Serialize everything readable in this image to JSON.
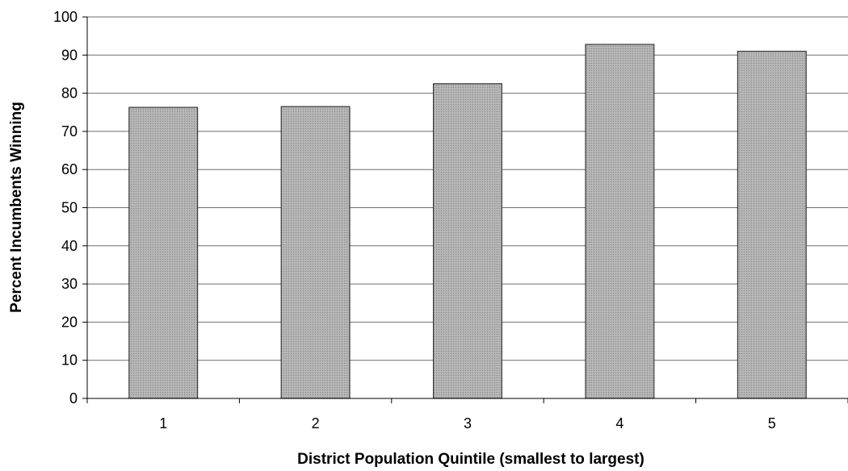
{
  "chart_data": {
    "type": "bar",
    "title": "",
    "xlabel": "District Population Quintile (smallest to largest)",
    "ylabel": "Percent Incumbents Winning",
    "categories": [
      "1",
      "2",
      "3",
      "4",
      "5"
    ],
    "values": [
      76.3,
      76.5,
      82.5,
      92.8,
      91.0
    ],
    "ylim": [
      0,
      100
    ],
    "yticks": [
      0,
      10,
      20,
      30,
      40,
      50,
      60,
      70,
      80,
      90,
      100
    ],
    "grid": true,
    "legend": "none",
    "bar_color": "#a9a9a9"
  }
}
